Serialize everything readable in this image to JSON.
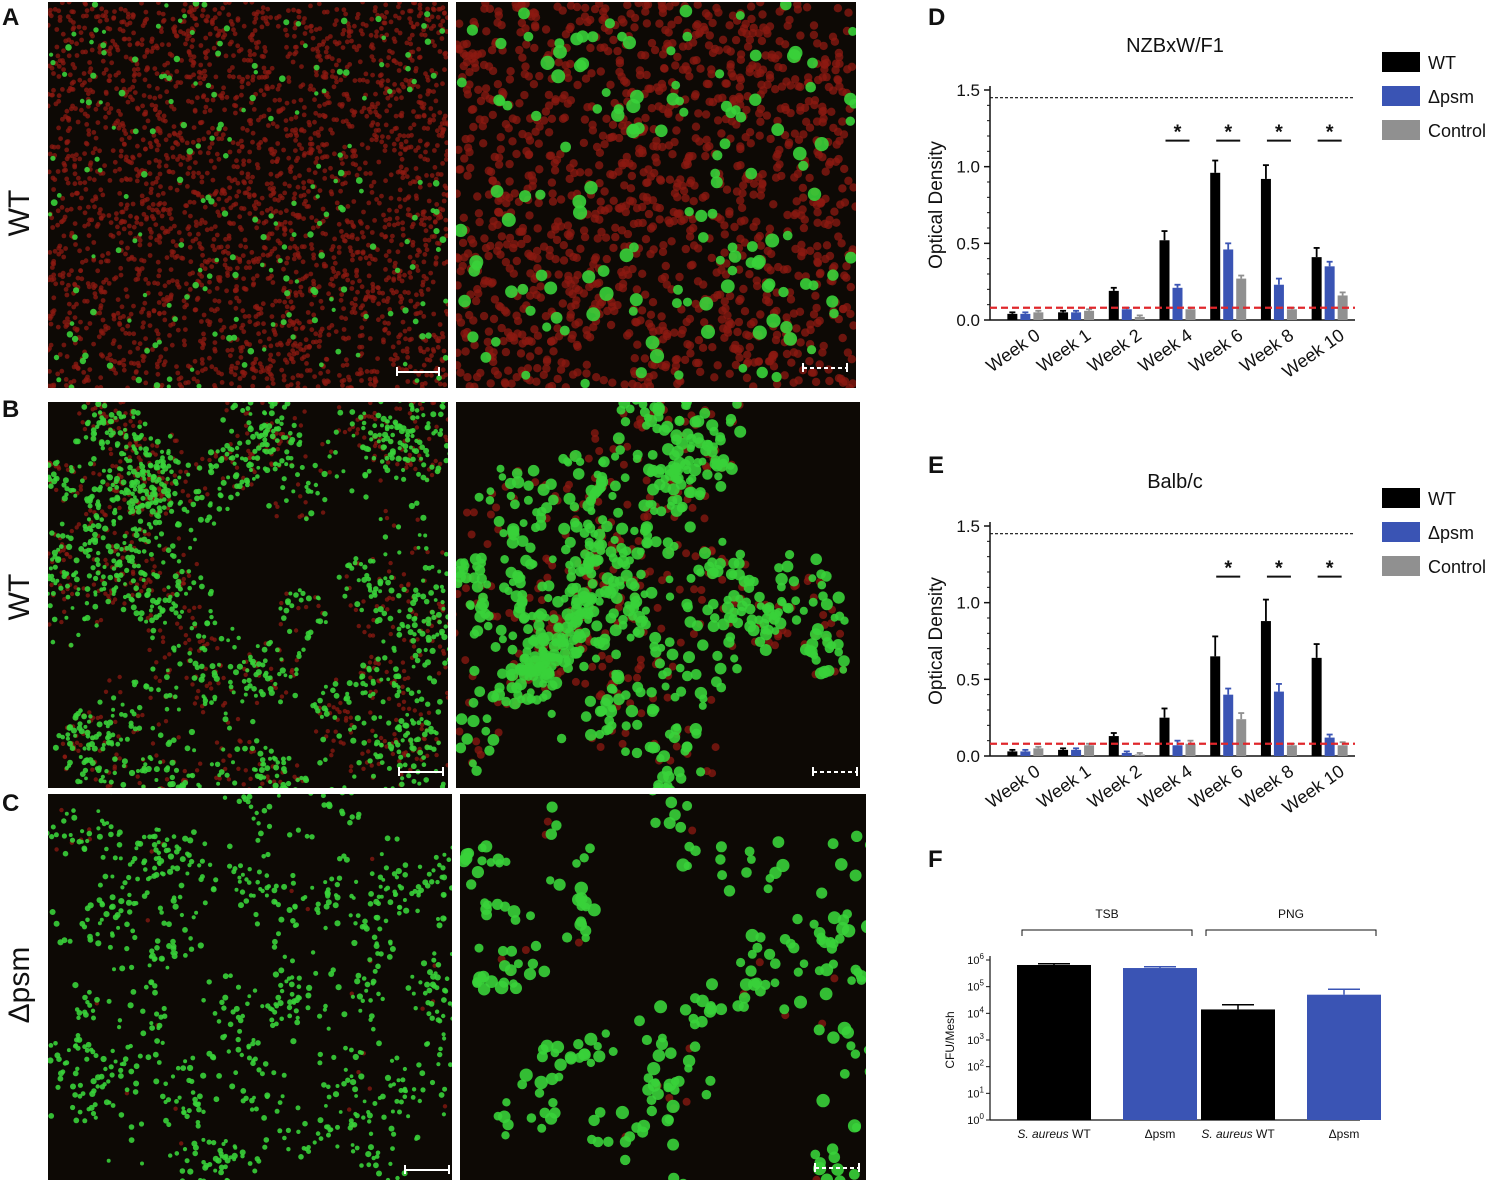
{
  "panels": {
    "A": "A",
    "B": "B",
    "C": "C",
    "D": "D",
    "E": "E",
    "F": "F"
  },
  "row_labels": {
    "A": "WT",
    "B": "WT",
    "C": "Δpsm"
  },
  "colors": {
    "wt": "#000000",
    "dpsm": "#3a54b4",
    "control": "#909090",
    "threshold_red": "#e0272c",
    "green_cell": "#38d23a",
    "red_cell": "#8c1a12",
    "bg_dark": "#0d0905"
  },
  "chart_data": [
    {
      "type": "bar",
      "title": "NZBxW/F1",
      "ylabel": "Optical Density",
      "ylim": [
        0,
        1.5
      ],
      "yticks": [
        "0.0",
        "0.5",
        "1.0",
        "1.5"
      ],
      "categories": [
        "Week 0",
        "Week 1",
        "Week 2",
        "Week 4",
        "Week 6",
        "Week 8",
        "Week 10"
      ],
      "series": [
        {
          "name": "WT",
          "values": [
            0.04,
            0.05,
            0.19,
            0.52,
            0.96,
            0.92,
            0.41
          ],
          "errors": [
            0.01,
            0.01,
            0.02,
            0.06,
            0.08,
            0.09,
            0.06
          ]
        },
        {
          "name": "Δpsm",
          "values": [
            0.04,
            0.05,
            0.07,
            0.21,
            0.46,
            0.23,
            0.35
          ],
          "errors": [
            0.01,
            0.01,
            0.01,
            0.02,
            0.04,
            0.04,
            0.03
          ]
        },
        {
          "name": "Control",
          "values": [
            0.05,
            0.06,
            0.02,
            0.07,
            0.27,
            0.07,
            0.16
          ],
          "errors": [
            0.01,
            0.01,
            0.01,
            0.01,
            0.02,
            0.01,
            0.02
          ]
        }
      ],
      "threshold_red": 0.08,
      "threshold_black": 1.45,
      "significance_marker": "*",
      "significant_categories": [
        "Week 4",
        "Week 6",
        "Week 8",
        "Week 10"
      ],
      "legend_placement": "right"
    },
    {
      "type": "bar",
      "title": "Balb/c",
      "ylabel": "Optical Density",
      "ylim": [
        0,
        1.5
      ],
      "yticks": [
        "0.0",
        "0.5",
        "1.0",
        "1.5"
      ],
      "categories": [
        "Week 0",
        "Week 1",
        "Week 2",
        "Week 4",
        "Week 6",
        "Week 8",
        "Week 10"
      ],
      "series": [
        {
          "name": "WT",
          "values": [
            0.03,
            0.04,
            0.13,
            0.25,
            0.65,
            0.88,
            0.64
          ],
          "errors": [
            0.01,
            0.01,
            0.02,
            0.06,
            0.13,
            0.14,
            0.09
          ]
        },
        {
          "name": "Δpsm",
          "values": [
            0.03,
            0.04,
            0.02,
            0.07,
            0.4,
            0.42,
            0.12
          ],
          "errors": [
            0.01,
            0.01,
            0.01,
            0.03,
            0.04,
            0.05,
            0.02
          ]
        },
        {
          "name": "Control",
          "values": [
            0.05,
            0.07,
            0.01,
            0.08,
            0.24,
            0.07,
            0.07
          ],
          "errors": [
            0.01,
            0.01,
            0.01,
            0.02,
            0.04,
            0.01,
            0.02
          ]
        }
      ],
      "threshold_red": 0.08,
      "threshold_black": 1.45,
      "significance_marker": "*",
      "significant_categories": [
        "Week 6",
        "Week 8",
        "Week 10"
      ],
      "legend_placement": "right"
    },
    {
      "type": "bar",
      "title": "",
      "ylabel": "CFU/Mesh",
      "yscale": "log",
      "ylim": [
        1,
        1000000
      ],
      "ytick_base": "10",
      "ytick_exponents": [
        "0",
        "1",
        "2",
        "3",
        "4",
        "5",
        "6"
      ],
      "categories": [
        "S. aureus WT",
        "Δpsm",
        "S. aureus WT",
        "Δpsm"
      ],
      "category_italic_prefix": [
        "S. aureus",
        "",
        "S. aureus",
        ""
      ],
      "category_suffix": [
        " WT",
        "Δpsm",
        " WT",
        "Δpsm"
      ],
      "groups": [
        {
          "label": "TSB",
          "categories": [
            0,
            1
          ]
        },
        {
          "label": "PNG",
          "categories": [
            2,
            3
          ]
        }
      ],
      "values": [
        650000,
        500000,
        14000,
        50000
      ],
      "errors_upper": [
        720000,
        560000,
        21000,
        80000
      ],
      "bar_colors": [
        "wt",
        "dpsm",
        "wt",
        "dpsm"
      ]
    }
  ]
}
